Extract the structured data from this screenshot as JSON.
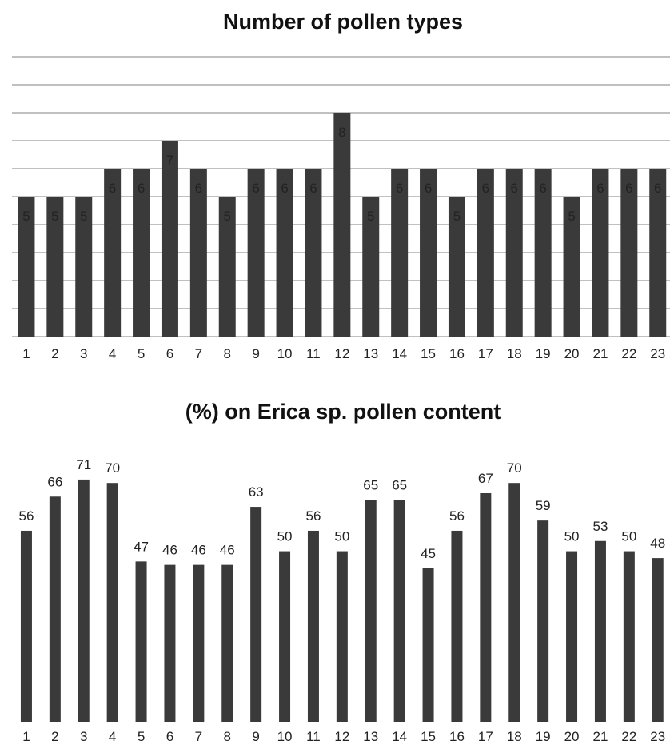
{
  "chart_data": [
    {
      "type": "bar",
      "title": "Number of pollen types",
      "categories": [
        "1",
        "2",
        "3",
        "4",
        "5",
        "6",
        "7",
        "8",
        "9",
        "10",
        "11",
        "12",
        "13",
        "14",
        "15",
        "16",
        "17",
        "18",
        "19",
        "20",
        "21",
        "22",
        "23"
      ],
      "values": [
        5,
        5,
        5,
        6,
        6,
        7,
        6,
        5,
        6,
        6,
        6,
        8,
        5,
        6,
        6,
        5,
        6,
        6,
        6,
        5,
        6,
        6,
        6
      ],
      "ylim": [
        0,
        10
      ],
      "grid": true,
      "bar_color": "#3a3a3a",
      "grid_color": "#9a9a9a"
    },
    {
      "type": "bar",
      "title": "(%) on Erica sp. pollen content",
      "categories": [
        "1",
        "2",
        "3",
        "4",
        "5",
        "6",
        "7",
        "8",
        "9",
        "10",
        "11",
        "12",
        "13",
        "14",
        "15",
        "16",
        "17",
        "18",
        "19",
        "20",
        "21",
        "22",
        "23"
      ],
      "values": [
        56,
        66,
        71,
        70,
        47,
        46,
        46,
        46,
        63,
        50,
        56,
        50,
        65,
        65,
        45,
        56,
        67,
        70,
        59,
        50,
        53,
        50,
        48
      ],
      "ylim": [
        0,
        80
      ],
      "grid": false,
      "bar_color": "#3a3a3a"
    }
  ]
}
